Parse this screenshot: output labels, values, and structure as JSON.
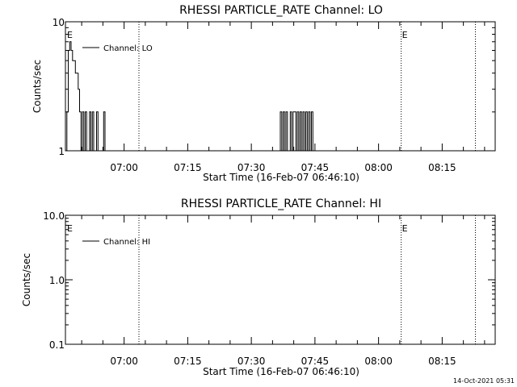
{
  "footer": {
    "timestamp": "14-Oct-2021 05:31"
  },
  "chart_data": [
    {
      "type": "line",
      "title": "RHESSI PARTICLE_RATE Channel: LO",
      "xlabel": "Start Time (16-Feb-07 06:46:10)",
      "ylabel": "Counts/sec",
      "y_scale": "log",
      "ylim": [
        1,
        10
      ],
      "y_ticks": [
        {
          "value": 1,
          "label": "1"
        },
        {
          "value": 10,
          "label": "10"
        }
      ],
      "xlim": [
        "06:46:10",
        "08:27:30"
      ],
      "x_ticks": [
        "07:00",
        "07:15",
        "07:30",
        "07:45",
        "08:00",
        "08:15"
      ],
      "legend": {
        "position": "top-left",
        "label": "Channel: LO"
      },
      "event_lines": [
        {
          "time": "07:03:30",
          "label": ""
        },
        {
          "time": "08:05:20",
          "label": "E"
        },
        {
          "time": "08:22:50",
          "label": ""
        }
      ],
      "start_marker": "E",
      "series": [
        {
          "name": "Channel: LO",
          "x": [
            "06:46:10",
            "06:46:30",
            "06:46:50",
            "06:47:10",
            "06:47:30",
            "06:47:50",
            "06:48:10",
            "06:48:30",
            "06:48:50",
            "06:49:10",
            "06:49:30",
            "06:49:50",
            "06:50:10",
            "06:50:30",
            "06:50:50",
            "06:51:10",
            "06:51:30",
            "06:51:50",
            "06:52:10",
            "06:52:30",
            "06:52:50",
            "06:53:10",
            "06:53:30",
            "06:53:50",
            "06:54:10",
            "06:54:30",
            "06:54:50",
            "06:55:10",
            "06:55:30",
            "06:55:50",
            "06:56:10",
            "07:36:50",
            "07:37:10",
            "07:37:30",
            "07:37:50",
            "07:38:10",
            "07:38:30",
            "07:38:50",
            "07:39:10",
            "07:39:30",
            "07:39:50",
            "07:40:10",
            "07:40:30",
            "07:40:50",
            "07:41:10",
            "07:41:30",
            "07:41:50",
            "07:42:10",
            "07:42:30",
            "07:42:50",
            "07:43:10",
            "07:43:30",
            "07:43:50",
            "07:44:10",
            "07:44:30"
          ],
          "values": [
            1,
            2,
            6,
            7,
            6,
            5,
            5,
            4,
            4,
            3,
            2,
            1,
            2,
            1,
            2,
            1,
            1,
            2,
            1,
            2,
            1,
            1,
            2,
            1,
            1,
            1,
            1,
            2,
            1,
            1,
            1,
            2,
            1,
            2,
            1,
            2,
            1,
            1,
            2,
            1,
            2,
            2,
            1,
            2,
            1,
            2,
            1,
            2,
            1,
            2,
            1,
            2,
            1,
            2,
            1
          ]
        }
      ]
    },
    {
      "type": "line",
      "title": "RHESSI PARTICLE_RATE Channel: HI",
      "xlabel": "Start Time (16-Feb-07 06:46:10)",
      "ylabel": "Counts/sec",
      "y_scale": "log",
      "ylim": [
        0.1,
        10
      ],
      "y_ticks": [
        {
          "value": 0.1,
          "label": "0.1"
        },
        {
          "value": 1,
          "label": "1.0"
        },
        {
          "value": 10,
          "label": "10.0"
        }
      ],
      "xlim": [
        "06:46:10",
        "08:27:30"
      ],
      "x_ticks": [
        "07:00",
        "07:15",
        "07:30",
        "07:45",
        "08:00",
        "08:15"
      ],
      "legend": {
        "position": "top-left",
        "label": "Channel: HI"
      },
      "event_lines": [
        {
          "time": "07:03:30",
          "label": ""
        },
        {
          "time": "08:05:20",
          "label": "E"
        },
        {
          "time": "08:22:50",
          "label": ""
        }
      ],
      "start_marker": "E",
      "series": [
        {
          "name": "Channel: HI",
          "x": [],
          "values": []
        }
      ]
    }
  ]
}
